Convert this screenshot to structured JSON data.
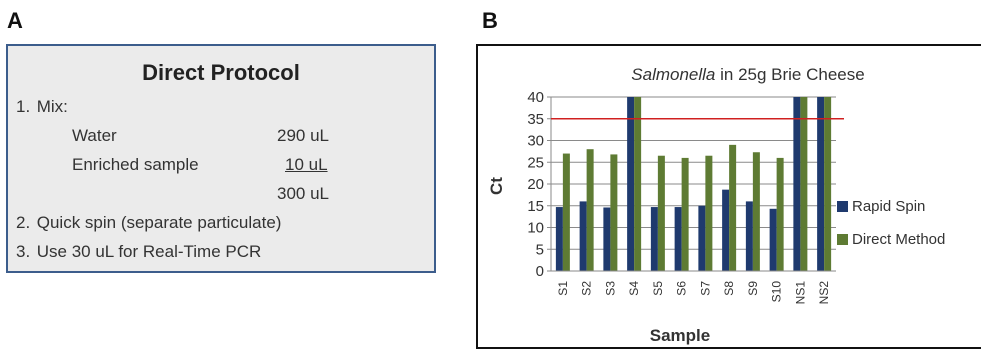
{
  "panels": {
    "a_label": "A",
    "b_label": "B"
  },
  "protocol": {
    "title": "Direct Protocol",
    "step1": {
      "num": "1.",
      "text": "Mix:"
    },
    "rows": [
      {
        "label": "Water",
        "amount": "290 uL"
      },
      {
        "label": "Enriched sample",
        "amount": "10 uL"
      },
      {
        "label": "",
        "amount": "300 uL"
      }
    ],
    "step2": {
      "num": "2.",
      "text": "Quick spin (separate  particulate)"
    },
    "step3": {
      "num": "3.",
      "text": "Use 30 uL for Real-Time  PCR"
    }
  },
  "chart_data": {
    "type": "bar",
    "title_italic": "Salmonella",
    "title_rest": " in 25g Brie Cheese",
    "xlabel": "Sample",
    "ylabel": "Ct",
    "ylim": [
      0,
      40
    ],
    "yticks": [
      0,
      5,
      10,
      15,
      20,
      25,
      30,
      35,
      40
    ],
    "categories": [
      "S1",
      "S2",
      "S3",
      "S4",
      "S5",
      "S6",
      "S7",
      "S8",
      "S9",
      "S10",
      "NS1",
      "NS2"
    ],
    "series": [
      {
        "name": "Rapid Spin",
        "color": "#1f3a6e",
        "values": [
          14.7,
          16,
          14.6,
          40,
          14.7,
          14.7,
          15,
          18.7,
          16,
          14.3,
          40,
          40
        ]
      },
      {
        "name": "Direct Method",
        "color": "#5e7b33",
        "values": [
          27,
          28,
          26.8,
          40,
          26.5,
          26,
          26.5,
          29,
          27.3,
          26,
          40,
          40
        ]
      }
    ],
    "threshold": {
      "value": 35,
      "color": "#d02020"
    },
    "grid": true,
    "legend_position": "right"
  }
}
